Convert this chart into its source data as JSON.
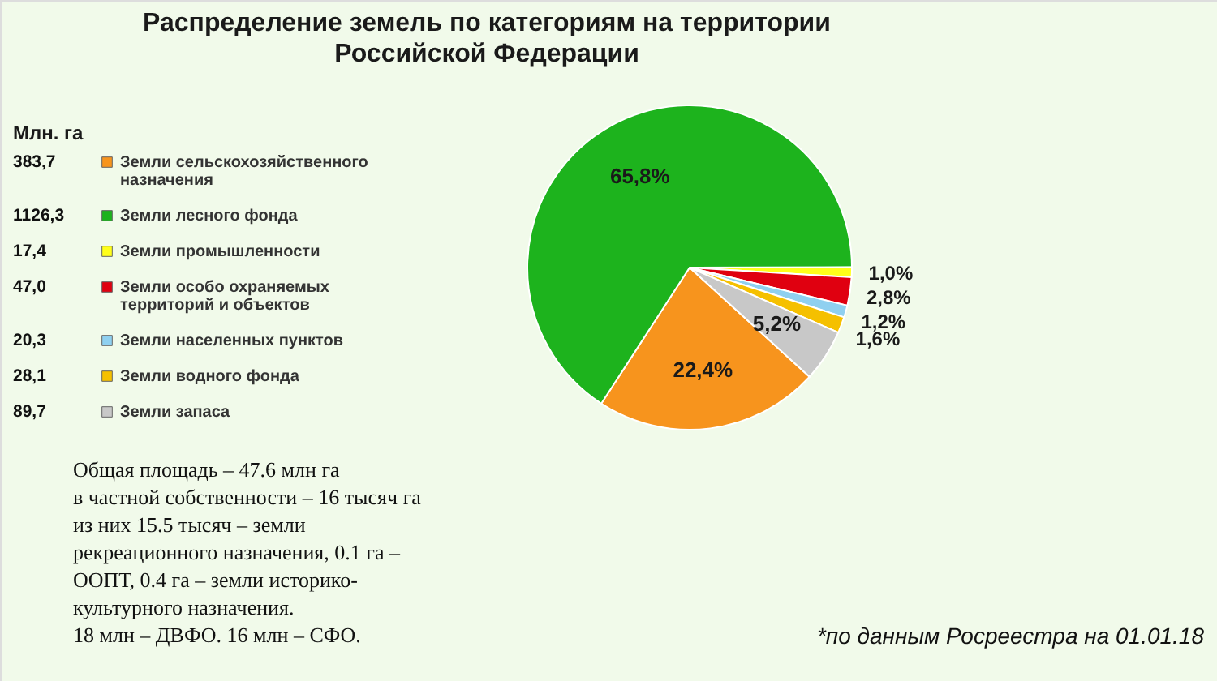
{
  "chart_data": {
    "type": "pie",
    "title": "Распределение земель по категориям на территории Российской Федерации",
    "legend_title": "Млн. га",
    "categories": [
      "Земли сельскохозяйственного назначения",
      "Земли лесного фонда",
      "Земли промышленности",
      "Земли особо охраняемых территорий и объектов",
      "Земли населенных пунктов",
      "Земли водного фонда",
      "Земли запаса"
    ],
    "values": [
      22.4,
      65.8,
      1.0,
      2.8,
      1.2,
      1.6,
      5.2
    ],
    "colors": [
      "#f7941d",
      "#1db31d",
      "#ffff1a",
      "#e00010",
      "#8fd0f0",
      "#f5c000",
      "#c8c8c8"
    ],
    "value_labels": [
      "22,4%",
      "65,8%",
      "1,0%",
      "2,8%",
      "1,2%",
      "1,6%",
      "5,2%"
    ],
    "legend": "left",
    "annotations": [
      "Общая площадь – 47.6 млн га\nв частной собственности – 16 тысяч га\nиз них 15.5 тысяч – земли\nрекреационного назначения, 0.1 га –\nООПТ, 0.4 га – земли историко-\nкультурного назначения.\n18 млн – ДВФО. 16 млн – СФО.",
      "*по данным Росреестра на 01.01.18",
      "383,7",
      "1126,3",
      "17,4",
      "47,0",
      "20,3",
      "28,1",
      "89,7"
    ]
  }
}
